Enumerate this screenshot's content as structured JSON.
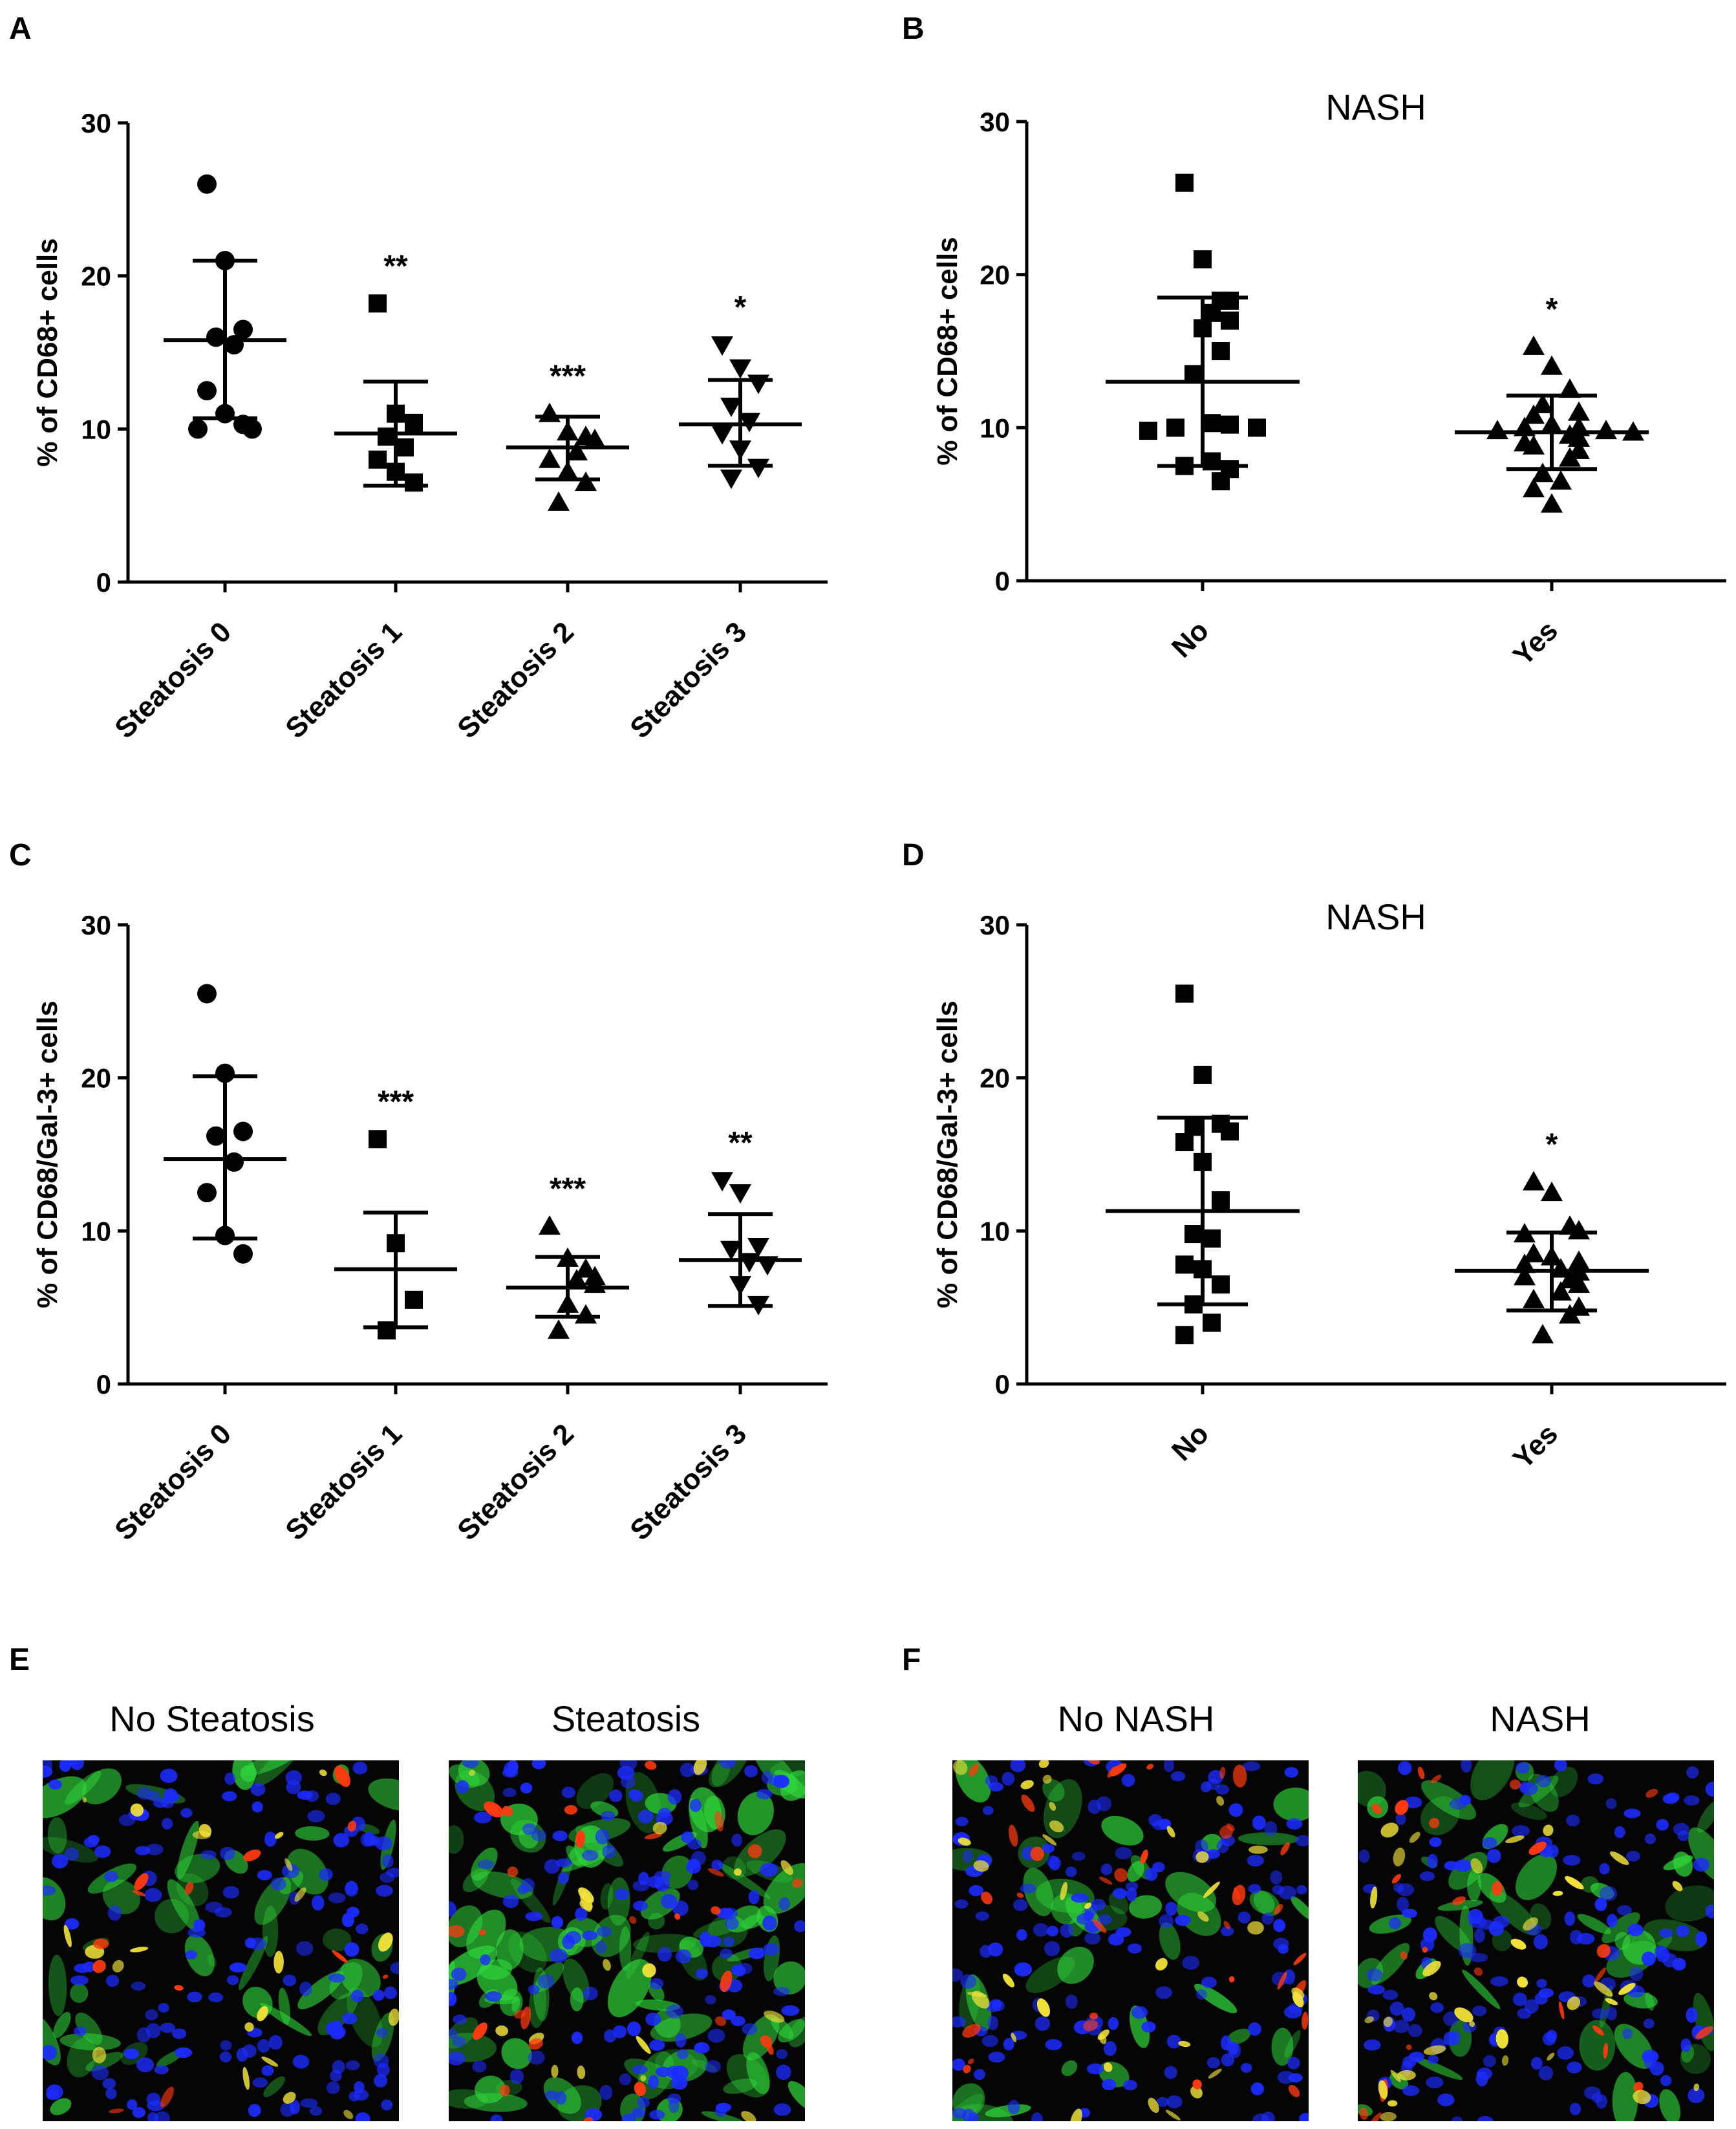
{
  "panel_letters": {
    "A": "A",
    "B": "B",
    "C": "C",
    "D": "D",
    "E": "E",
    "F": "F"
  },
  "chart_data": [
    {
      "id": "A",
      "type": "scatter",
      "title": "",
      "ylabel": "% of CD68+ cells",
      "ylim": [
        0,
        30
      ],
      "yticks": [
        0,
        10,
        20,
        30
      ],
      "categories": [
        "Steatosis 0",
        "Steatosis 1",
        "Steatosis 2",
        "Steatosis 3"
      ],
      "series": [
        {
          "name": "Steatosis 0",
          "marker": "circle",
          "mean": 15.8,
          "sd_low": 10.7,
          "sd_high": 21.0,
          "significance": "",
          "values": [
            26.0,
            21.0,
            16.5,
            16.0,
            15.5,
            12.5,
            11.0,
            10.3,
            10.0,
            10.0
          ]
        },
        {
          "name": "Steatosis 1",
          "marker": "square",
          "mean": 9.7,
          "sd_low": 6.3,
          "sd_high": 13.1,
          "significance": "**",
          "values": [
            18.2,
            11.0,
            10.4,
            9.5,
            8.8,
            8.0,
            7.2,
            6.5
          ]
        },
        {
          "name": "Steatosis 2",
          "marker": "triangle",
          "mean": 8.8,
          "sd_low": 6.7,
          "sd_high": 10.8,
          "significance": "***",
          "values": [
            11.0,
            9.8,
            9.5,
            9.3,
            8.5,
            8.0,
            7.2,
            6.5,
            5.2
          ]
        },
        {
          "name": "Steatosis 3",
          "marker": "triangle-down",
          "mean": 10.3,
          "sd_low": 7.6,
          "sd_high": 13.2,
          "significance": "*",
          "values": [
            15.5,
            14.0,
            13.0,
            11.5,
            10.5,
            9.7,
            8.7,
            7.5,
            6.8
          ]
        }
      ]
    },
    {
      "id": "B",
      "type": "scatter",
      "title": "NASH",
      "ylabel": "% of CD68+ cells",
      "ylim": [
        0,
        30
      ],
      "yticks": [
        0,
        10,
        20,
        30
      ],
      "categories": [
        "No",
        "Yes"
      ],
      "series": [
        {
          "name": "No",
          "marker": "square",
          "mean": 13.0,
          "sd_low": 7.5,
          "sd_high": 18.5,
          "significance": "",
          "values": [
            26.0,
            21.0,
            18.3,
            18.3,
            17.5,
            17.0,
            16.5,
            15.0,
            13.5,
            10.3,
            10.2,
            10.0,
            10.0,
            9.8,
            7.8,
            7.5,
            7.3,
            6.5
          ]
        },
        {
          "name": "Yes",
          "marker": "triangle",
          "mean": 9.7,
          "sd_low": 7.3,
          "sd_high": 12.1,
          "significance": "*",
          "values": [
            15.3,
            14.0,
            12.5,
            11.5,
            11.0,
            10.8,
            10.2,
            10.0,
            10.0,
            9.8,
            9.8,
            9.7,
            9.5,
            9.3,
            9.0,
            8.8,
            8.5,
            8.0,
            7.0,
            6.5,
            6.0,
            5.0
          ]
        }
      ]
    },
    {
      "id": "C",
      "type": "scatter",
      "title": "",
      "ylabel": "% of CD68/Gal-3+ cells",
      "ylim": [
        0,
        30
      ],
      "yticks": [
        0,
        10,
        20,
        30
      ],
      "categories": [
        "Steatosis 0",
        "Steatosis 1",
        "Steatosis 2",
        "Steatosis 3"
      ],
      "series": [
        {
          "name": "Steatosis 0",
          "marker": "circle",
          "mean": 14.7,
          "sd_low": 9.5,
          "sd_high": 20.1,
          "significance": "",
          "values": [
            25.5,
            20.3,
            16.5,
            16.2,
            14.5,
            12.5,
            9.7,
            8.5
          ]
        },
        {
          "name": "Steatosis 1",
          "marker": "square",
          "mean": 7.5,
          "sd_low": 3.7,
          "sd_high": 11.2,
          "significance": "***",
          "values": [
            16.0,
            9.2,
            5.5,
            3.5
          ]
        },
        {
          "name": "Steatosis 2",
          "marker": "triangle",
          "mean": 6.3,
          "sd_low": 4.4,
          "sd_high": 8.3,
          "significance": "***",
          "values": [
            10.3,
            8.2,
            7.5,
            7.0,
            6.8,
            6.5,
            5.2,
            4.5,
            3.5
          ]
        },
        {
          "name": "Steatosis 3",
          "marker": "triangle-down",
          "mean": 8.1,
          "sd_low": 5.1,
          "sd_high": 11.1,
          "significance": "**",
          "values": [
            13.3,
            12.5,
            9.0,
            8.8,
            8.0,
            7.8,
            6.5,
            5.2
          ]
        }
      ]
    },
    {
      "id": "D",
      "type": "scatter",
      "title": "NASH",
      "ylabel": "% of CD68/Gal-3+ cells",
      "ylim": [
        0,
        30
      ],
      "yticks": [
        0,
        10,
        20,
        30
      ],
      "categories": [
        "No",
        "Yes"
      ],
      "series": [
        {
          "name": "No",
          "marker": "square",
          "mean": 11.3,
          "sd_low": 5.2,
          "sd_high": 17.4,
          "significance": "",
          "values": [
            25.5,
            20.2,
            17.0,
            16.8,
            16.5,
            15.8,
            14.5,
            12.0,
            9.8,
            9.5,
            7.8,
            7.5,
            6.5,
            5.2,
            4.0,
            3.2
          ]
        },
        {
          "name": "Yes",
          "marker": "triangle",
          "mean": 7.4,
          "sd_low": 4.8,
          "sd_high": 9.9,
          "significance": "*",
          "values": [
            13.2,
            12.5,
            10.3,
            10.0,
            9.8,
            8.5,
            8.3,
            8.0,
            7.8,
            7.5,
            7.3,
            7.0,
            6.8,
            6.5,
            6.0,
            5.5,
            5.0,
            4.5,
            3.2
          ]
        }
      ]
    }
  ],
  "micrographs": {
    "E": {
      "left_title": "No Steatosis",
      "right_title": "Steatosis"
    },
    "F": {
      "left_title": "No NASH",
      "right_title": "NASH"
    }
  },
  "colors": {
    "nuclei": "#1c2cff",
    "green_stain": "#2fd43a",
    "red_stain": "#ff3a10",
    "yellow_overlap": "#f2e23a",
    "background": "#050505"
  }
}
